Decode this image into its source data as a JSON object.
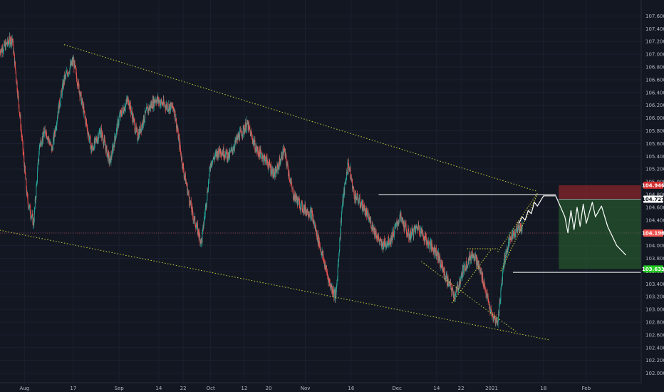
{
  "chart_data": {
    "type": "candlestick",
    "title": "",
    "xlabel": "",
    "ylabel": "",
    "ylim": [
      101.85,
      107.85
    ],
    "x_range": [
      "2020-07-24",
      "2021-02-19"
    ],
    "y_ticks": [
      102.0,
      102.2,
      102.4,
      102.6,
      102.8,
      103.0,
      103.2,
      103.4,
      103.6,
      103.8,
      104.0,
      104.2,
      104.4,
      104.6,
      104.8,
      105.0,
      105.2,
      105.4,
      105.6,
      105.8,
      106.0,
      106.2,
      106.4,
      106.6,
      106.8,
      107.0,
      107.2,
      107.4,
      107.6
    ],
    "y_tick_labels": [
      "102.000",
      "102.200",
      "102.400",
      "102.600",
      "102.800",
      "103.000",
      "103.200",
      "103.400",
      "103.600",
      "103.800",
      "104.000",
      "104.200",
      "104.400",
      "104.600",
      "104.800",
      "105.000",
      "105.200",
      "105.400",
      "105.600",
      "105.800",
      "106.000",
      "106.200",
      "106.400",
      "106.600",
      "106.800",
      "107.000",
      "107.200",
      "107.400",
      "107.600"
    ],
    "x_ticks": [
      {
        "label": "Aug",
        "date": "2020-08-01"
      },
      {
        "label": "17",
        "date": "2020-08-17"
      },
      {
        "label": "Sep",
        "date": "2020-09-01"
      },
      {
        "label": "14",
        "date": "2020-09-14"
      },
      {
        "label": "22",
        "date": "2020-09-22"
      },
      {
        "label": "Oct",
        "date": "2020-10-01"
      },
      {
        "label": "12",
        "date": "2020-10-12"
      },
      {
        "label": "20",
        "date": "2020-10-20"
      },
      {
        "label": "Nov",
        "date": "2020-11-01"
      },
      {
        "label": "16",
        "date": "2020-11-16"
      },
      {
        "label": "Dec",
        "date": "2020-12-01"
      },
      {
        "label": "14",
        "date": "2020-12-14"
      },
      {
        "label": "22",
        "date": "2020-12-22"
      },
      {
        "label": "2021",
        "date": "2021-01-01"
      },
      {
        "label": "18",
        "date": "2021-01-18"
      },
      {
        "label": "Feb",
        "date": "2021-02-01"
      }
    ],
    "price_path": [
      [
        "2020-07-24",
        107.05
      ],
      [
        "2020-07-28",
        107.25
      ],
      [
        "2020-07-30",
        106.3
      ],
      [
        "2020-08-02",
        104.7
      ],
      [
        "2020-08-04",
        104.35
      ],
      [
        "2020-08-06",
        105.6
      ],
      [
        "2020-08-08",
        105.8
      ],
      [
        "2020-08-10",
        105.5
      ],
      [
        "2020-08-12",
        106.1
      ],
      [
        "2020-08-14",
        106.6
      ],
      [
        "2020-08-17",
        106.9
      ],
      [
        "2020-08-20",
        106.2
      ],
      [
        "2020-08-23",
        105.5
      ],
      [
        "2020-08-26",
        105.8
      ],
      [
        "2020-08-29",
        105.3
      ],
      [
        "2020-09-01",
        106.0
      ],
      [
        "2020-09-04",
        106.3
      ],
      [
        "2020-09-07",
        105.7
      ],
      [
        "2020-09-10",
        106.1
      ],
      [
        "2020-09-13",
        106.3
      ],
      [
        "2020-09-16",
        106.2
      ],
      [
        "2020-09-19",
        106.15
      ],
      [
        "2020-09-22",
        105.2
      ],
      [
        "2020-09-25",
        104.5
      ],
      [
        "2020-09-28",
        104.05
      ],
      [
        "2020-10-01",
        105.3
      ],
      [
        "2020-10-04",
        105.5
      ],
      [
        "2020-10-07",
        105.4
      ],
      [
        "2020-10-10",
        105.7
      ],
      [
        "2020-10-13",
        105.9
      ],
      [
        "2020-10-16",
        105.5
      ],
      [
        "2020-10-19",
        105.35
      ],
      [
        "2020-10-22",
        105.1
      ],
      [
        "2020-10-25",
        105.5
      ],
      [
        "2020-10-28",
        104.8
      ],
      [
        "2020-10-31",
        104.6
      ],
      [
        "2020-11-03",
        104.5
      ],
      [
        "2020-11-06",
        103.95
      ],
      [
        "2020-11-09",
        103.4
      ],
      [
        "2020-11-11",
        103.2
      ],
      [
        "2020-11-13",
        104.6
      ],
      [
        "2020-11-15",
        105.3
      ],
      [
        "2020-11-17",
        104.8
      ],
      [
        "2020-11-20",
        104.6
      ],
      [
        "2020-11-23",
        104.3
      ],
      [
        "2020-11-26",
        104.0
      ],
      [
        "2020-11-29",
        104.1
      ],
      [
        "2020-12-02",
        104.45
      ],
      [
        "2020-12-05",
        104.15
      ],
      [
        "2020-12-08",
        104.3
      ],
      [
        "2020-12-11",
        104.05
      ],
      [
        "2020-12-14",
        103.9
      ],
      [
        "2020-12-17",
        103.5
      ],
      [
        "2020-12-20",
        103.2
      ],
      [
        "2020-12-23",
        103.65
      ],
      [
        "2020-12-26",
        103.9
      ],
      [
        "2020-12-29",
        103.5
      ],
      [
        "2021-01-01",
        102.9
      ],
      [
        "2021-01-03",
        102.8
      ],
      [
        "2021-01-05",
        103.75
      ],
      [
        "2021-01-07",
        104.1
      ],
      [
        "2021-01-09",
        104.25
      ],
      [
        "2021-01-11",
        104.3
      ]
    ],
    "channel_lines": [
      {
        "points": [
          [
            "2020-08-14",
            107.15
          ],
          [
            "2021-01-16",
            104.85
          ]
        ],
        "color": "#c7d33a"
      },
      {
        "points": [
          [
            "2020-07-23",
            104.25
          ],
          [
            "2021-01-20",
            102.52
          ]
        ],
        "color": "#c7d33a"
      },
      {
        "points": [
          [
            "2020-12-09",
            103.75
          ],
          [
            "2021-01-09",
            102.65
          ]
        ],
        "color": "#c7d33a"
      }
    ],
    "wedge_lines": [
      {
        "points": [
          [
            "2020-12-24",
            103.95
          ],
          [
            "2021-01-03",
            103.95
          ]
        ],
        "color": "#c7d33a"
      },
      {
        "points": [
          [
            "2020-12-19",
            103.1
          ],
          [
            "2021-01-01",
            103.95
          ]
        ],
        "color": "#c7d33a"
      },
      {
        "points": [
          [
            "2021-01-03",
            103.9
          ],
          [
            "2021-01-16",
            104.82
          ]
        ],
        "color": "#c7d33a"
      },
      {
        "points": [
          [
            "2021-01-04",
            103.6
          ],
          [
            "2021-01-16",
            104.8
          ]
        ],
        "color": "#c7d33a"
      }
    ],
    "resistance_level": {
      "from": "2020-11-25",
      "to": "2021-01-22",
      "value": 104.8
    },
    "support_level": {
      "from": "2021-01-08",
      "to": "2021-02-19",
      "value": 103.58
    },
    "position": {
      "type": "short",
      "from": "2021-01-23",
      "to": "2021-02-19",
      "entry": 104.727,
      "stop": 104.946,
      "target": 103.633,
      "stop_color": "#d32f2f",
      "target_color": "#2e7d32"
    },
    "projection_path": [
      [
        "2021-01-10",
        104.35
      ],
      [
        "2021-01-11",
        104.45
      ],
      [
        "2021-01-12",
        104.4
      ],
      [
        "2021-01-13",
        104.55
      ],
      [
        "2021-01-14",
        104.5
      ],
      [
        "2021-01-15",
        104.68
      ],
      [
        "2021-01-16",
        104.62
      ],
      [
        "2021-01-18",
        104.78
      ],
      [
        "2021-01-22",
        104.78
      ],
      [
        "2021-01-25",
        104.45
      ],
      [
        "2021-01-26",
        104.2
      ],
      [
        "2021-01-27",
        104.55
      ],
      [
        "2021-01-28",
        104.25
      ],
      [
        "2021-01-29",
        104.6
      ],
      [
        "2021-01-30",
        104.3
      ],
      [
        "2021-01-31",
        104.65
      ],
      [
        "2021-02-01",
        104.35
      ],
      [
        "2021-02-03",
        104.68
      ],
      [
        "2021-02-04",
        104.45
      ],
      [
        "2021-02-06",
        104.62
      ],
      [
        "2021-02-08",
        104.3
      ],
      [
        "2021-02-11",
        104.0
      ],
      [
        "2021-02-14",
        103.85
      ]
    ],
    "current_price": 104.196,
    "price_tags": [
      {
        "label": "104.946",
        "value": 104.946,
        "bg": "#d32f2f",
        "fg": "#ffffff"
      },
      {
        "label": "104.727",
        "value": 104.727,
        "bg": "#ffffff",
        "fg": "#131722"
      },
      {
        "label": "104.196",
        "value": 104.196,
        "bg": "#ef5350",
        "fg": "#ffffff"
      },
      {
        "label": "103.633",
        "value": 103.633,
        "bg": "#22c722",
        "fg": "#ffffff"
      }
    ],
    "colors": {
      "background": "#131722",
      "grid": "#1c2030",
      "up_candle": "#26a69a",
      "down_candle": "#ef5350",
      "axis_text": "#b2b5be",
      "levels": "#ffffff"
    },
    "grid": true,
    "legend": "none"
  }
}
